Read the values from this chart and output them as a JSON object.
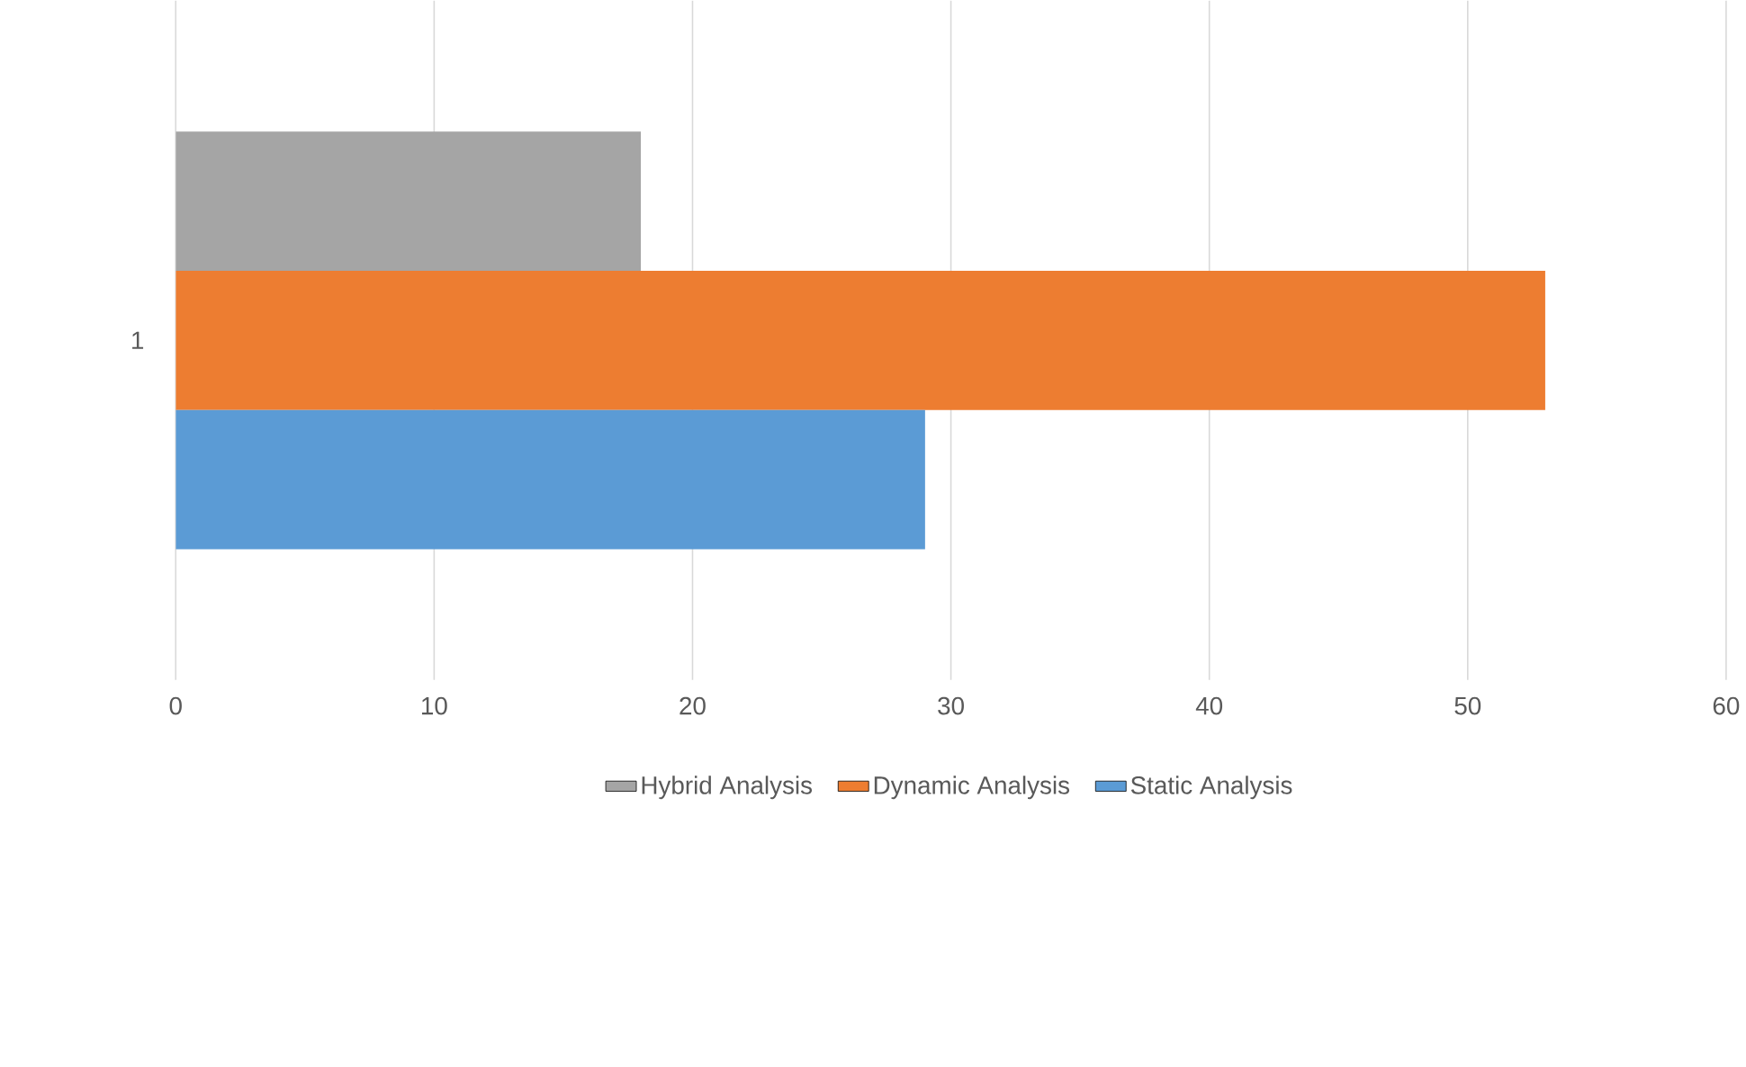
{
  "chart_data": {
    "type": "bar",
    "orientation": "horizontal",
    "categories": [
      "1"
    ],
    "series": [
      {
        "name": "Hybrid Analysis",
        "color": "#a5a5a5",
        "values": [
          18
        ]
      },
      {
        "name": "Dynamic Analysis",
        "color": "#ed7d31",
        "values": [
          53
        ]
      },
      {
        "name": "Static Analysis",
        "color": "#5b9bd5",
        "values": [
          29
        ]
      }
    ],
    "xlim": [
      0,
      60
    ],
    "xticks": [
      0,
      10,
      20,
      30,
      40,
      50,
      60
    ],
    "grid": "x",
    "legend": "bottom"
  }
}
